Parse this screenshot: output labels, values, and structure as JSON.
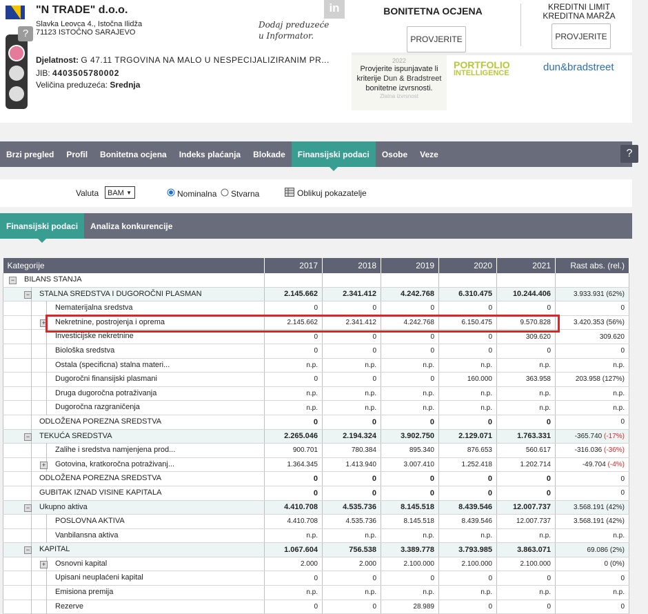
{
  "header": {
    "company_name": "\"N TRADE\" d.o.o.",
    "address_line1": "Slavka Leovca 4., Istočna Ilidža",
    "address_line2": "71123 ISTOČNO SARAJEVO",
    "help": "?",
    "in_logo": "in",
    "informator_line1": "Dodaj preduzeće",
    "informator_line2": "u Informator.",
    "activity_label": "Djelatnost:",
    "activity_value": "G 47.11 TRGOVINA NA MALO U NESPECIJALIZIRANIM PR...",
    "jib_label": "JIB:",
    "jib_value": "4403505780002",
    "size_label": "Veličina preduzeća:",
    "size_value": "Srednja"
  },
  "rating": {
    "title": "BONITETNA OCJENA",
    "button": "PROVJERITE"
  },
  "credit": {
    "title_line1": "KREDITNI LIMIT",
    "title_line2": "KREDITNA MARŽA",
    "button": "PROVJERITE"
  },
  "ad": {
    "year": "2022",
    "text1": "Provjerite ispunjavate li kriterije",
    "text_bold": "Dun & Bradstreet",
    "text2": "bonitetne izvrsnosti.",
    "caption": "Zlatna izvrsnost",
    "portfolio_line1": "PORTFOLIO",
    "portfolio_line2": "INTELLIGENCE",
    "dnb": "dun&bradstreet"
  },
  "nav": {
    "tabs": [
      "Brzi pregled",
      "Profil",
      "Bonitetna ocjena",
      "Indeks plaćanja",
      "Blokade",
      "Finansijski podaci",
      "Osobe",
      "Veze"
    ],
    "active": 5,
    "help": "?"
  },
  "options": {
    "currency_label": "Valuta",
    "currency": "BAM",
    "radio1": "Nominalna",
    "radio2": "Stvarna",
    "shape_button": "Oblikuj pokazatelje"
  },
  "subtabs": {
    "tabs": [
      "Finansijski podaci",
      "Analiza konkurencije"
    ],
    "active": 0
  },
  "table": {
    "headers": [
      "Kategorije",
      "2017",
      "2018",
      "2019",
      "2020",
      "2021",
      "Rast abs. (rel.)"
    ],
    "highlight_row": 3,
    "rows": [
      {
        "level": 0,
        "expander": "minus",
        "label": "BILANS STANJA"
      },
      {
        "level": 1,
        "expander": "minus",
        "label": "STALNA SREDSTVA I DUGOROČNI PLASMAN",
        "values": [
          "2.145.662",
          "2.341.412",
          "4.242.768",
          "6.310.475",
          "10.244.406"
        ],
        "growth": "3.933.931",
        "growth_rel": "(62%)"
      },
      {
        "level": 2,
        "label": "Nematerijalna sredstva",
        "values": [
          "0",
          "0",
          "0",
          "0",
          "0"
        ],
        "growth": "0"
      },
      {
        "level": 2,
        "expander": "plus",
        "label": "Nekretnine, postrojenja i oprema",
        "values": [
          "2.145.662",
          "2.341.412",
          "4.242.768",
          "6.150.475",
          "9.570.828"
        ],
        "growth": "3.420.353",
        "growth_rel": "(56%)"
      },
      {
        "level": 2,
        "label": "Investicijske nekretnine",
        "values": [
          "0",
          "0",
          "0",
          "0",
          "309.620"
        ],
        "growth": "309.620"
      },
      {
        "level": 2,
        "label": "Biološka sredstva",
        "values": [
          "0",
          "0",
          "0",
          "0",
          "0"
        ],
        "growth": "0"
      },
      {
        "level": 2,
        "label": "Ostala (specificna) stalna materi...",
        "values": [
          "n.p.",
          "n.p.",
          "n.p.",
          "n.p.",
          "n.p."
        ],
        "growth": "n.p."
      },
      {
        "level": 2,
        "label": "Dugoročni finansijski plasmani",
        "values": [
          "0",
          "0",
          "0",
          "160.000",
          "363.958"
        ],
        "growth": "203.958",
        "growth_rel": "(127%)"
      },
      {
        "level": 2,
        "label": "Druga dugoročna potraživanja",
        "values": [
          "n.p.",
          "n.p.",
          "n.p.",
          "n.p.",
          "n.p."
        ],
        "growth": "n.p."
      },
      {
        "level": 2,
        "label": "Dugoročna razgraničenja",
        "values": [
          "n.p.",
          "n.p.",
          "n.p.",
          "n.p.",
          "n.p."
        ],
        "growth": "n.p."
      },
      {
        "level": 1,
        "label": "ODLOŽENA POREZNA SREDSTVA",
        "values": [
          "0",
          "0",
          "0",
          "0",
          "0"
        ],
        "growth": "0"
      },
      {
        "level": 1,
        "expander": "minus",
        "label": "TEKUĆA SREDSTVA",
        "values": [
          "2.265.046",
          "2.194.324",
          "3.902.750",
          "2.129.071",
          "1.763.331"
        ],
        "growth": "-365.740",
        "growth_rel": "(-17%)"
      },
      {
        "level": 2,
        "label": "Zalihe i sredstva namjenjena prod...",
        "values": [
          "900.701",
          "780.384",
          "895.340",
          "876.653",
          "560.617"
        ],
        "growth": "-316.036",
        "growth_rel": "(-36%)"
      },
      {
        "level": 2,
        "expander": "plus",
        "label": "Gotovina, kratkoročna potraživanj...",
        "values": [
          "1.364.345",
          "1.413.940",
          "3.007.410",
          "1.252.418",
          "1.202.714"
        ],
        "growth": "-49.704",
        "growth_rel": "(-4%)"
      },
      {
        "level": 1,
        "label": "ODLOŽENA POREZNA SREDSTVA",
        "values": [
          "0",
          "0",
          "0",
          "0",
          "0"
        ],
        "growth": "0"
      },
      {
        "level": 1,
        "label": "GUBITAK IZNAD VISINE KAPITALA",
        "values": [
          "0",
          "0",
          "0",
          "0",
          "0"
        ],
        "growth": "0"
      },
      {
        "level": 1,
        "expander": "minus",
        "label": "Ukupno aktiva",
        "values": [
          "4.410.708",
          "4.535.736",
          "8.145.518",
          "8.439.546",
          "12.007.737"
        ],
        "growth": "3.568.191",
        "growth_rel": "(42%)"
      },
      {
        "level": 2,
        "label": "POSLOVNA AKTIVA",
        "values": [
          "4.410.708",
          "4.535.736",
          "8.145.518",
          "8.439.546",
          "12.007.737"
        ],
        "growth": "3.568.191",
        "growth_rel": "(42%)"
      },
      {
        "level": 2,
        "label": "Vanbilansna aktiva",
        "values": [
          "n.p.",
          "n.p.",
          "n.p.",
          "n.p.",
          "n.p."
        ],
        "growth": "n.p."
      },
      {
        "level": 1,
        "expander": "minus",
        "label": "KAPITAL",
        "values": [
          "1.067.604",
          "756.538",
          "3.389.778",
          "3.793.985",
          "3.863.071"
        ],
        "growth": "69.086",
        "growth_rel": "(2%)"
      },
      {
        "level": 2,
        "expander": "plus",
        "label": "Osnovni kapital",
        "values": [
          "2.000",
          "2.000",
          "2.100.000",
          "2.100.000",
          "2.100.000"
        ],
        "growth": "0",
        "growth_rel": "(0%)"
      },
      {
        "level": 2,
        "label": "Upisani neuplaćeni kapital",
        "values": [
          "0",
          "0",
          "0",
          "0",
          "0"
        ],
        "growth": "0"
      },
      {
        "level": 2,
        "label": "Emisiona premija",
        "values": [
          "n.p.",
          "n.p.",
          "n.p.",
          "n.p.",
          "n.p."
        ],
        "growth": "n.p."
      },
      {
        "level": 2,
        "label": "Rezerve",
        "values": [
          "0",
          "0",
          "28.989",
          "0",
          "0"
        ],
        "growth": "0"
      }
    ]
  }
}
